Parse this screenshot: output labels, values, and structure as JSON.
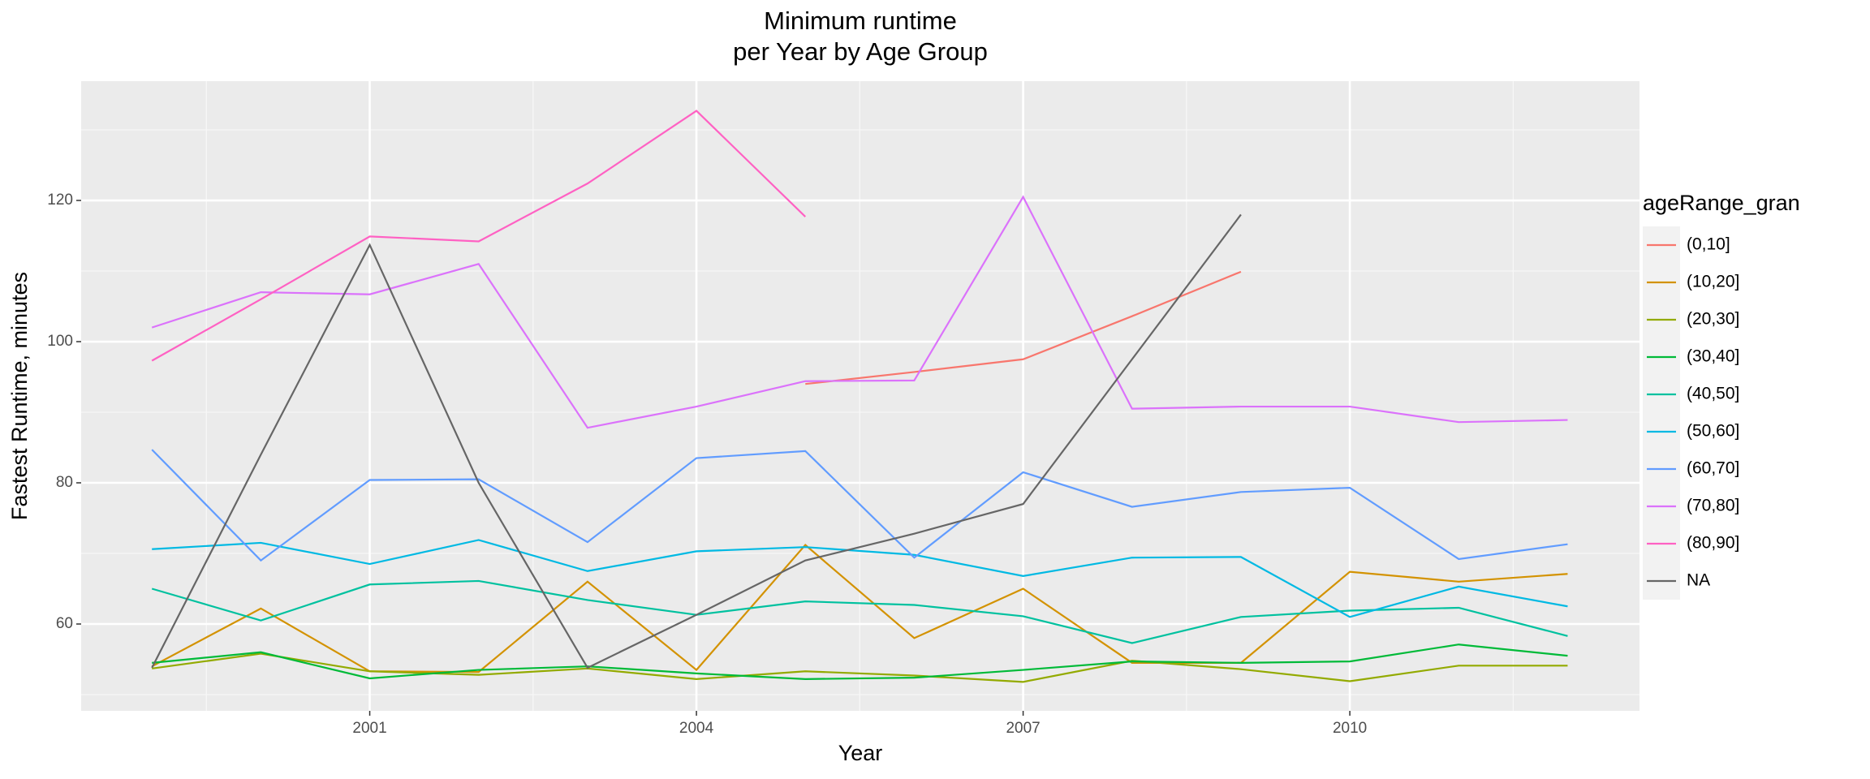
{
  "chart_data": {
    "type": "line",
    "title": [
      "Minimum runtime",
      "per Year by Age Group"
    ],
    "x_label": "Year",
    "y_label": "Fastest Runtime, minutes",
    "legend_title": "ageRange_gran",
    "x": [
      1999,
      2000,
      2001,
      2002,
      2003,
      2004,
      2005,
      2006,
      2007,
      2008,
      2009,
      2010,
      2011,
      2012
    ],
    "xlim": [
      1998.35,
      2012.66
    ],
    "xticks": [
      2001,
      2004,
      2007,
      2010
    ],
    "ylim": [
      47.7,
      136.9
    ],
    "yticks": [
      60,
      80,
      100,
      120
    ],
    "grid": true,
    "series": [
      {
        "name": "(0,10]",
        "color": "#F8766D",
        "values": [
          null,
          null,
          null,
          null,
          null,
          null,
          94.0,
          95.7,
          97.5,
          103.6,
          109.9,
          null,
          null,
          null
        ]
      },
      {
        "name": "(10,20]",
        "color": "#D39200",
        "values": [
          54,
          62.2,
          53.3,
          53.2,
          66,
          53.5,
          71.2,
          58,
          65,
          54.5,
          54.5,
          67.4,
          66,
          67.1
        ]
      },
      {
        "name": "(20,30]",
        "color": "#93AA00",
        "values": [
          53.7,
          55.8,
          53.3,
          52.8,
          53.7,
          52.2,
          53.3,
          52.7,
          51.8,
          54.8,
          53.6,
          51.9,
          54.1,
          54.1
        ]
      },
      {
        "name": "(30,40]",
        "color": "#00BA38",
        "values": [
          54.5,
          56,
          52.3,
          53.5,
          54,
          53,
          52.2,
          52.4,
          53.5,
          54.7,
          54.5,
          54.7,
          57.1,
          55.5
        ]
      },
      {
        "name": "(40,50]",
        "color": "#00C19F",
        "values": [
          65,
          60.5,
          65.6,
          66.1,
          63.4,
          61.3,
          63.2,
          62.7,
          61.1,
          57.3,
          61,
          61.9,
          62.3,
          58.3
        ]
      },
      {
        "name": "(50,60]",
        "color": "#00B9E3",
        "values": [
          70.6,
          71.5,
          68.5,
          71.9,
          67.5,
          70.3,
          70.9,
          69.8,
          66.8,
          69.4,
          69.5,
          61,
          65.3,
          62.5
        ]
      },
      {
        "name": "(60,70]",
        "color": "#619CFF",
        "values": [
          84.7,
          69,
          80.4,
          80.5,
          71.6,
          83.5,
          84.5,
          69.4,
          81.5,
          76.6,
          78.7,
          79.3,
          69.2,
          71.3
        ]
      },
      {
        "name": "(70,80]",
        "color": "#DB72FB",
        "values": [
          102,
          107,
          106.7,
          111,
          87.8,
          90.8,
          94.4,
          94.5,
          120.5,
          90.5,
          90.8,
          90.8,
          88.6,
          88.9
        ]
      },
      {
        "name": "(80,90]",
        "color": "#FF61C3",
        "values": [
          97.3,
          106,
          114.9,
          114.2,
          122.4,
          132.7,
          117.7,
          null,
          null,
          null,
          null,
          null,
          null,
          null
        ]
      },
      {
        "name": "NA",
        "color": "#666666",
        "values": [
          53.8,
          84,
          113.7,
          80,
          53.8,
          61.3,
          69,
          72.8,
          77,
          97.5,
          118,
          null,
          null,
          null
        ]
      }
    ]
  }
}
